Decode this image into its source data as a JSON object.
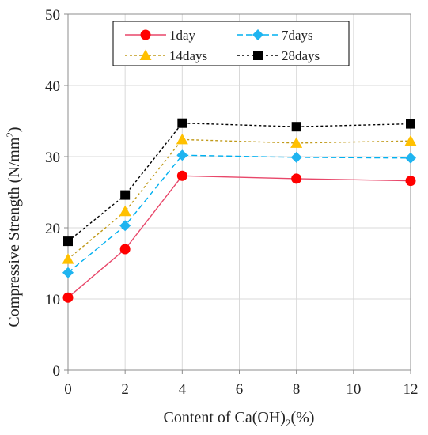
{
  "chart_data": {
    "type": "line",
    "xlabel": {
      "prefix": "Content of Ca(OH)",
      "sub": "2",
      "suffix": "(%)"
    },
    "ylabel": {
      "prefix": "Compressive Strength (N/mm",
      "sup": "2",
      "suffix": ")"
    },
    "xlim": [
      0,
      12
    ],
    "ylim": [
      0,
      50
    ],
    "x_ticks": [
      "0",
      "2",
      "4",
      "6",
      "8",
      "10",
      "12"
    ],
    "y_ticks": [
      "0",
      "10",
      "20",
      "30",
      "40",
      "50"
    ],
    "x": [
      0,
      2,
      4,
      8,
      12
    ],
    "grid": true,
    "legend_position": "top-center",
    "series": [
      {
        "name": "1day",
        "values": [
          10.2,
          17.0,
          27.3,
          26.9,
          26.6
        ],
        "color": "#e8476a",
        "marker": "circle",
        "marker_color": "#ff0000",
        "dash": "solid"
      },
      {
        "name": "7days",
        "values": [
          13.7,
          20.3,
          30.2,
          29.9,
          29.8
        ],
        "color": "#00b0f0",
        "marker": "diamond",
        "marker_color": "#1fb4f0",
        "dash": "dash"
      },
      {
        "name": "14days",
        "values": [
          15.6,
          22.3,
          32.4,
          31.9,
          32.2
        ],
        "color": "#c09a1a",
        "marker": "triangle",
        "marker_color": "#ffc000",
        "dash": "dot"
      },
      {
        "name": "28days",
        "values": [
          18.1,
          24.6,
          34.7,
          34.2,
          34.6
        ],
        "color": "#000000",
        "marker": "square",
        "marker_color": "#000000",
        "dash": "dot"
      }
    ]
  }
}
